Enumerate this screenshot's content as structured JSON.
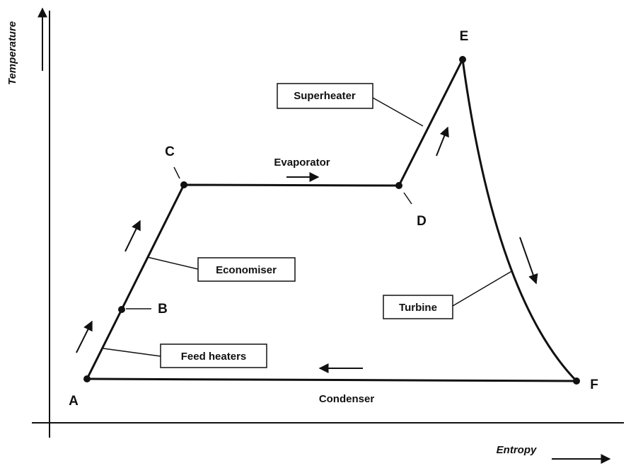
{
  "axes": {
    "y_label": "Temperature",
    "x_label": "Entropy"
  },
  "points": {
    "A": "A",
    "B": "B",
    "C": "C",
    "D": "D",
    "E": "E",
    "F": "F"
  },
  "components": {
    "feed_heaters": "Feed heaters",
    "economiser": "Economiser",
    "evaporator": "Evaporator",
    "superheater": "Superheater",
    "turbine": "Turbine",
    "condenser": "Condenser"
  }
}
